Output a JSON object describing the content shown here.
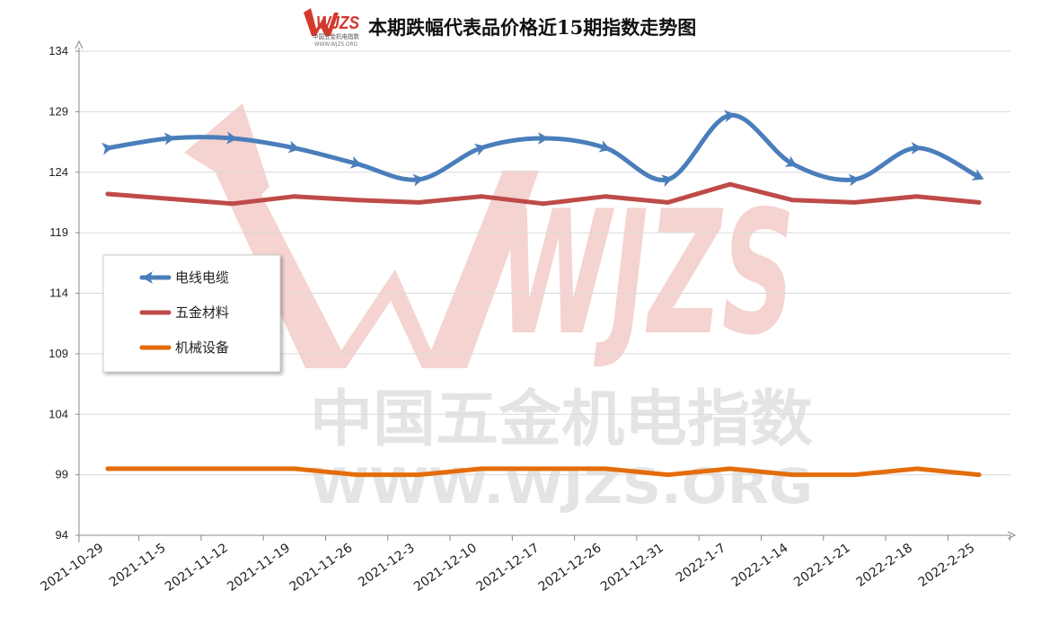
{
  "logo": {
    "mark": "WJZS",
    "subtitle": "中国五金机电指数",
    "url": "WWW.WJZS.ORG"
  },
  "watermark": {
    "mark": "WJZS",
    "line1": "中国五金机电指数",
    "line2": "WWW.WJZS.ORG"
  },
  "chart_data": {
    "type": "line",
    "title": "本期跌幅代表品价格近15期指数走势图",
    "xlabel": "",
    "ylabel": "",
    "ylim": [
      94,
      134
    ],
    "yticks": [
      94,
      99,
      104,
      109,
      114,
      119,
      124,
      129,
      134
    ],
    "categories": [
      "2021-10-29",
      "2021-11-5",
      "2021-11-12",
      "2021-11-19",
      "2021-11-26",
      "2021-12-3",
      "2021-12-10",
      "2021-12-17",
      "2021-12-26",
      "2021-12-31",
      "2022-1-7",
      "2022-1-14",
      "2022-1-21",
      "2022-2-18",
      "2022-2-25"
    ],
    "grid": true,
    "legend_position": "left",
    "series": [
      {
        "name": "电线电缆",
        "color": "#4a7ebb",
        "smooth": true,
        "marker": "arrow",
        "values": [
          126.0,
          126.8,
          126.8,
          126.0,
          124.7,
          123.4,
          126.0,
          126.8,
          126.0,
          123.4,
          128.7,
          124.7,
          123.4,
          126.0,
          123.6
        ]
      },
      {
        "name": "五金材料",
        "color": "#be4b48",
        "smooth": false,
        "marker": "none",
        "values": [
          122.2,
          121.8,
          121.4,
          122.0,
          121.7,
          121.5,
          122.0,
          121.4,
          122.0,
          121.5,
          123.0,
          121.7,
          121.5,
          122.0,
          121.5
        ]
      },
      {
        "name": "机械设备",
        "color": "#e46c0a",
        "smooth": false,
        "marker": "none",
        "values": [
          99.5,
          99.5,
          99.5,
          99.5,
          99.0,
          99.0,
          99.5,
          99.5,
          99.5,
          99.0,
          99.5,
          99.0,
          99.0,
          99.5,
          99.0
        ]
      }
    ]
  }
}
